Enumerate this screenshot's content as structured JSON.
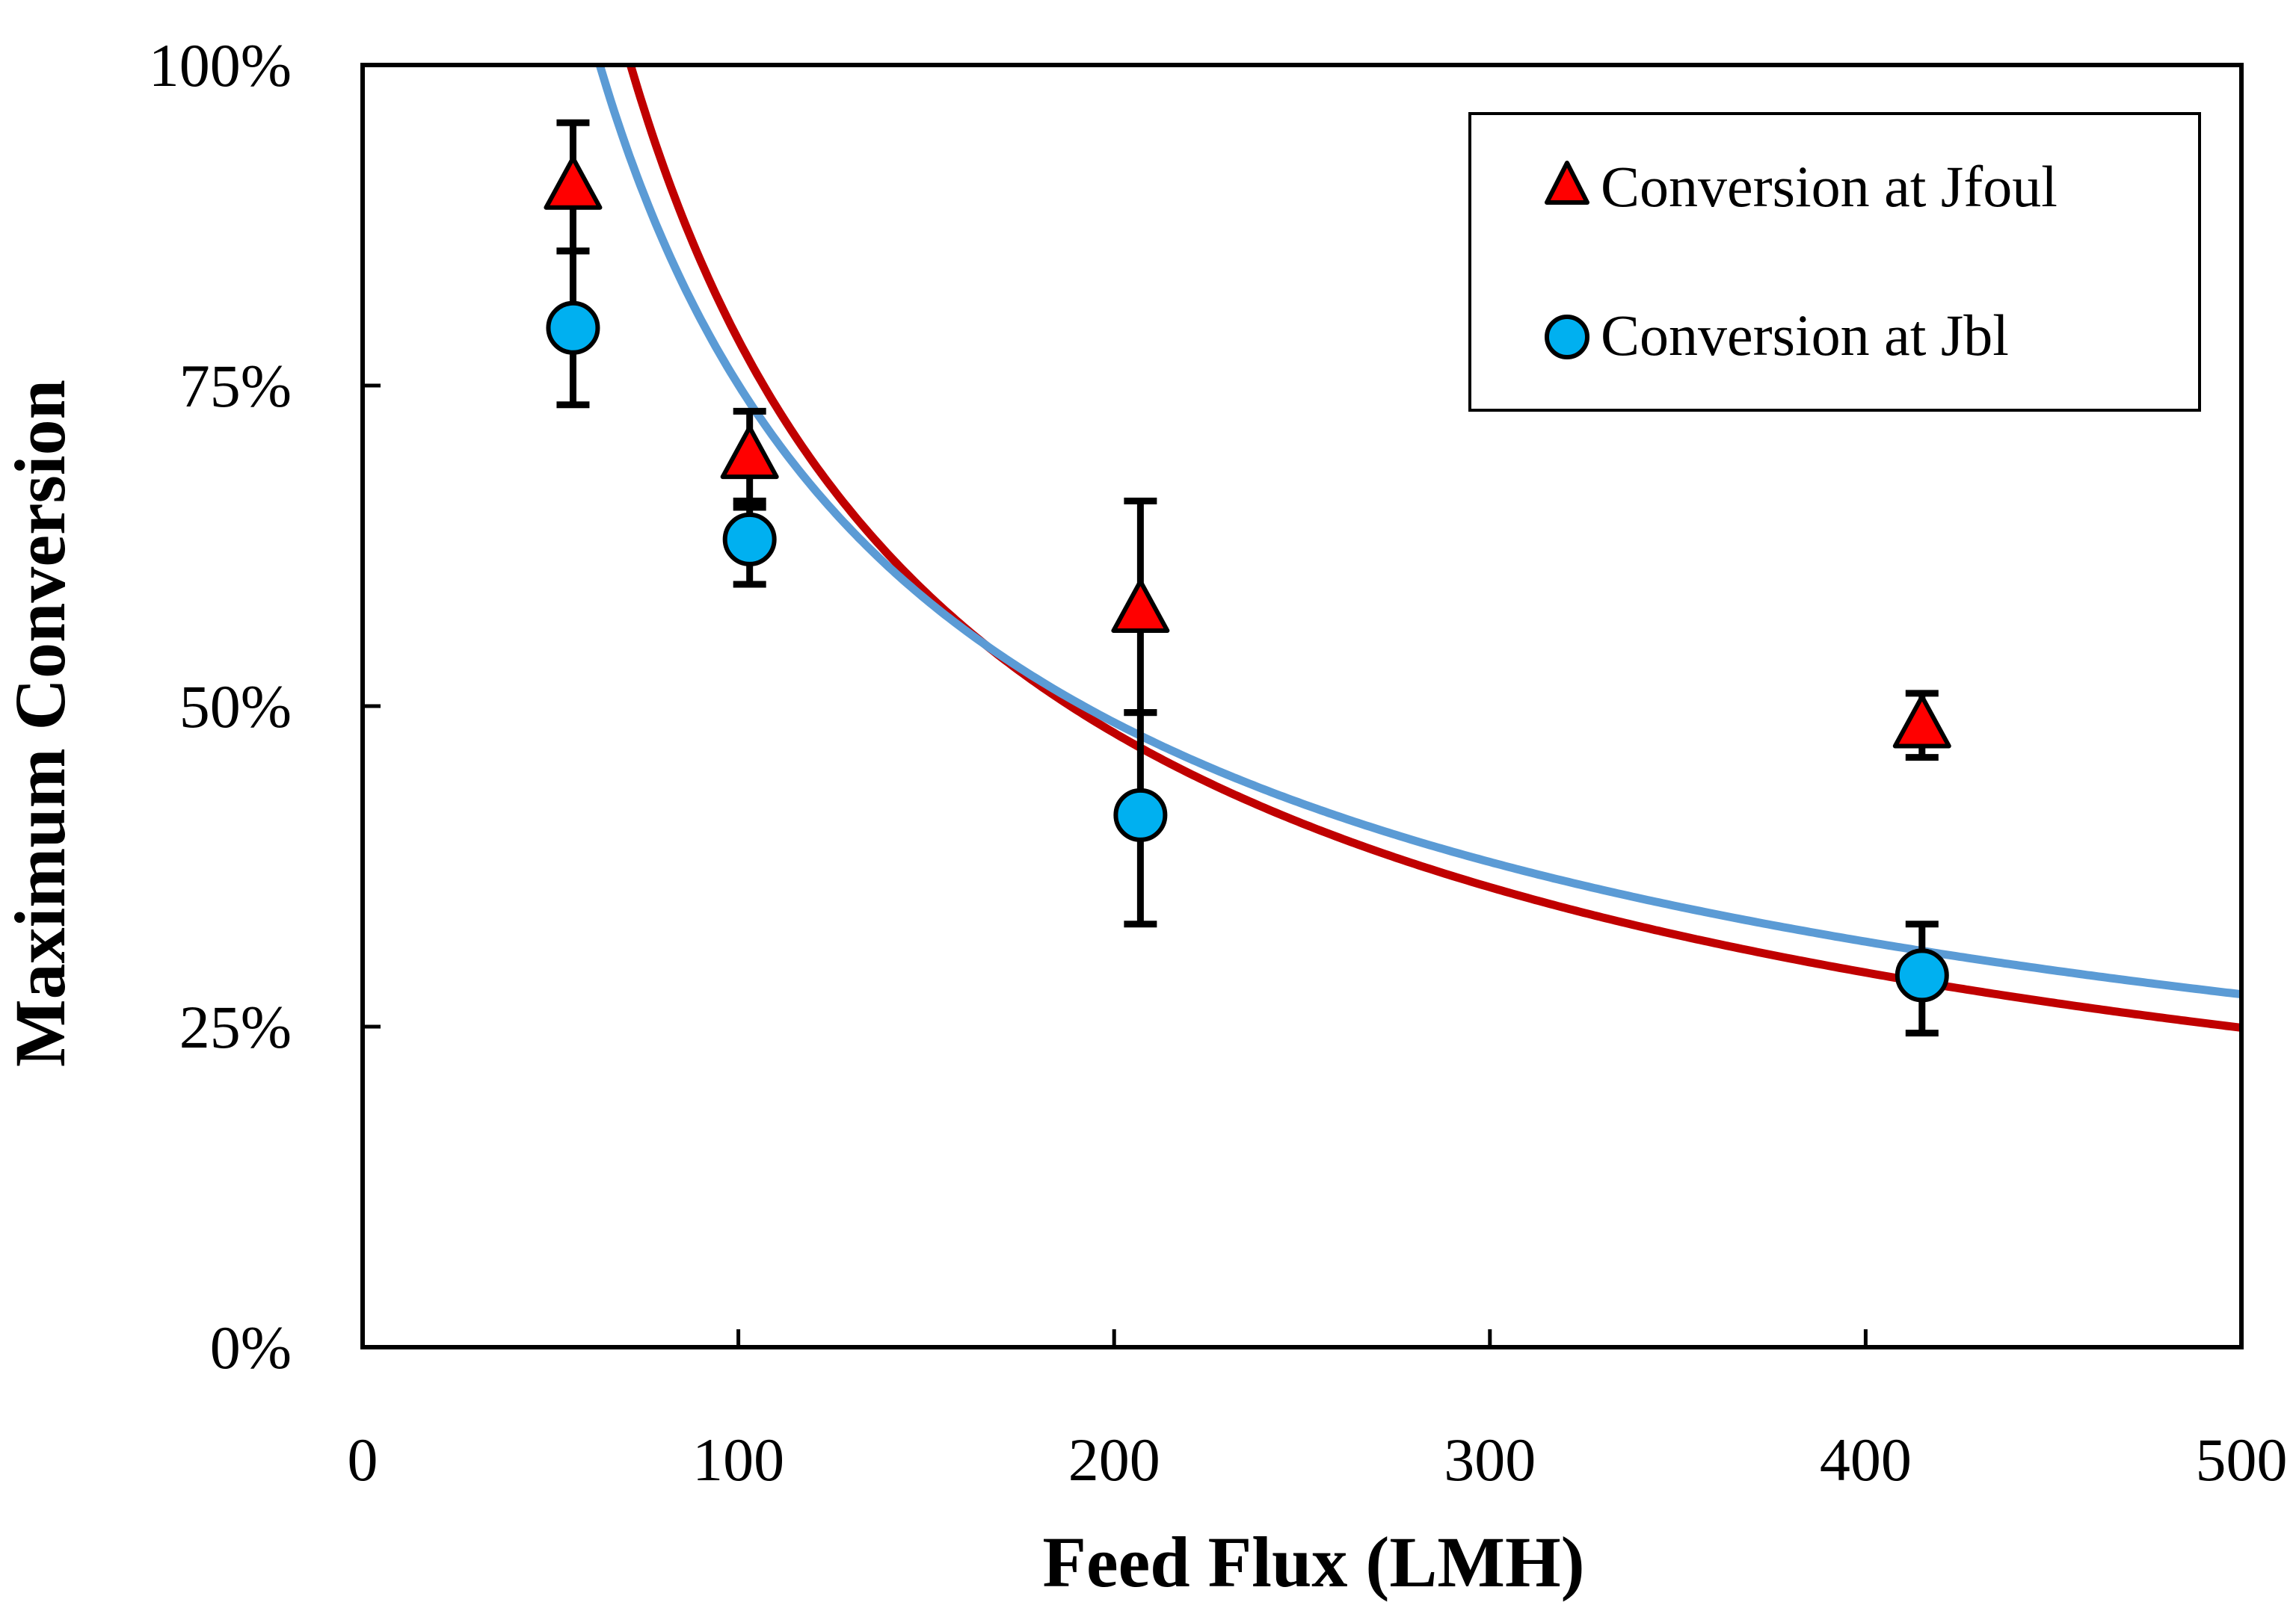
{
  "chart_data": {
    "type": "scatter",
    "title": "",
    "xlabel": "Feed Flux (LMH)",
    "ylabel": "Maximum Conversion",
    "xlim": [
      0,
      500
    ],
    "ylim": [
      0,
      100
    ],
    "x_ticks": [
      0,
      100,
      200,
      300,
      400,
      500
    ],
    "x_tick_labels": [
      "0",
      "100",
      "200",
      "300",
      "400",
      "500"
    ],
    "y_ticks": [
      0,
      25,
      50,
      75,
      100
    ],
    "y_tick_labels": [
      "0%",
      "25%",
      "50%",
      "75%",
      "100%"
    ],
    "grid": false,
    "legend_position": "top-right",
    "series": [
      {
        "name": "Conversion at Jfoul",
        "marker": "triangle",
        "color": "#ff0000",
        "line_color": "#c00000",
        "x": [
          56,
          103,
          207,
          415
        ],
        "y": [
          90.5,
          69.5,
          57.5,
          48.5
        ],
        "err_low": [
          5.0,
          4.0,
          8.0,
          2.5
        ],
        "err_high": [
          5.0,
          3.5,
          8.5,
          2.5
        ],
        "fit": {
          "form": "a * x^b",
          "a": 2100,
          "b": -0.7135
        }
      },
      {
        "name": "Conversion at Jbl",
        "marker": "circle",
        "color": "#00b0f0",
        "line_color": "#5b9bd5",
        "x": [
          56,
          103,
          207,
          415
        ],
        "y": [
          79.5,
          63.0,
          41.5,
          29.0
        ],
        "err_low": [
          6.0,
          3.5,
          8.5,
          4.5
        ],
        "err_high": [
          6.0,
          3.0,
          8.0,
          4.0
        ],
        "fit": {
          "form": "a * x^b",
          "a": 1325,
          "b": -0.6234
        }
      }
    ]
  }
}
